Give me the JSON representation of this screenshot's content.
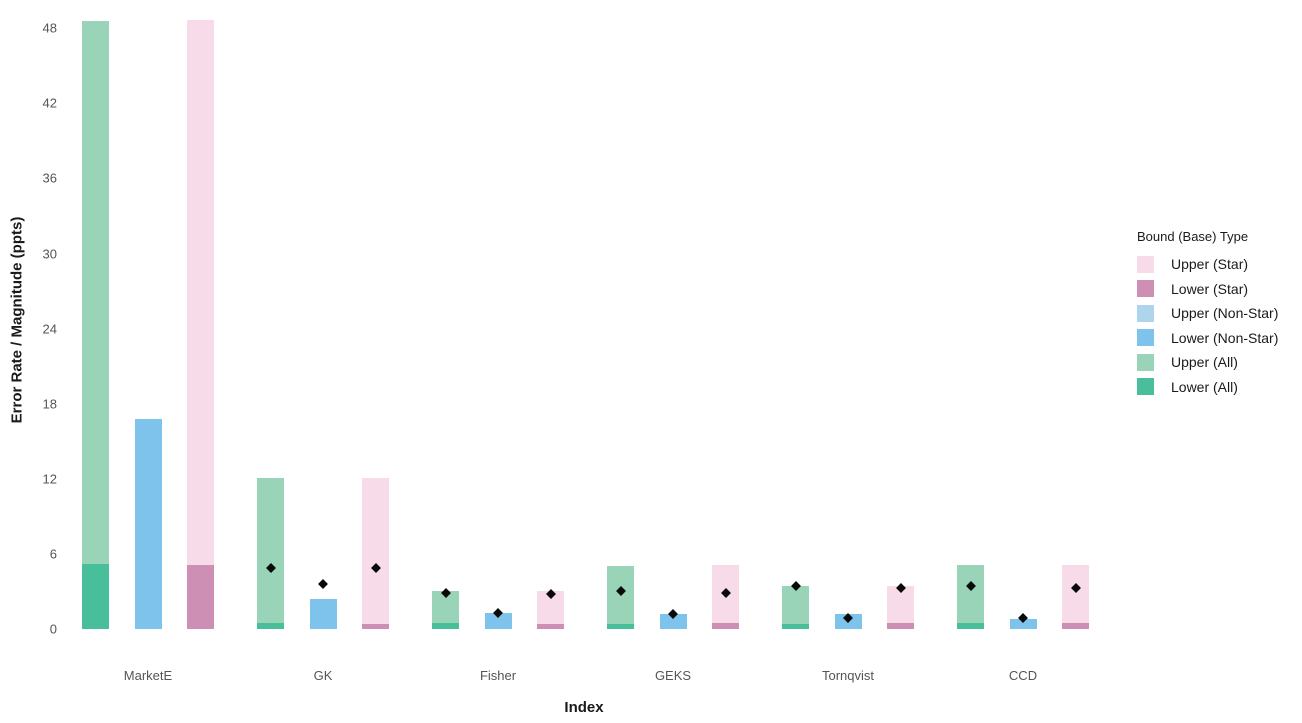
{
  "figure": {
    "y_axis_title": "Error Rate / Magnitude (ppts)",
    "x_axis_title": "Index",
    "legend_title": "Bound (Base) Type"
  },
  "chart_data": {
    "type": "bar",
    "title": "",
    "xlabel": "Index",
    "ylabel": "Error Rate / Magnitude (ppts)",
    "ylim": [
      0,
      49.5
    ],
    "yticks": [
      0,
      6,
      12,
      18,
      24,
      30,
      36,
      42,
      48
    ],
    "grid": false,
    "legend_position": "right",
    "legend_title": "Bound (Base) Type",
    "categories": [
      "MarketE",
      "GK",
      "Fisher",
      "GEKS",
      "Tornqvist",
      "CCD"
    ],
    "bar_groups": [
      "All",
      "Non-Star",
      "Star"
    ],
    "series": [
      {
        "name": "Upper (All)",
        "group": "All",
        "role": "upper",
        "color_key": "upper_all",
        "values": [
          48.6,
          12.1,
          3.0,
          5.0,
          3.4,
          5.1
        ]
      },
      {
        "name": "Lower (All)",
        "group": "All",
        "role": "lower",
        "color_key": "lower_all",
        "values": [
          5.2,
          0.5,
          0.45,
          0.4,
          0.4,
          0.5
        ]
      },
      {
        "name": "Lower (Non-Star)",
        "group": "Non-Star",
        "role": "lower",
        "color_key": "lower_nonstar",
        "values": [
          16.8,
          2.4,
          1.25,
          1.2,
          1.2,
          0.8
        ]
      },
      {
        "name": "Upper (Star)",
        "group": "Star",
        "role": "upper",
        "color_key": "upper_star",
        "values": [
          48.7,
          12.1,
          3.0,
          5.1,
          3.4,
          5.1
        ]
      },
      {
        "name": "Lower (Star)",
        "group": "Star",
        "role": "lower",
        "color_key": "lower_star",
        "values": [
          5.1,
          0.4,
          0.4,
          0.45,
          0.45,
          0.45
        ]
      }
    ],
    "point_markers": {
      "shape": "diamond",
      "color": "#0a0a0a",
      "series": [
        {
          "group": "All",
          "values": [
            null,
            4.9,
            2.9,
            3.0,
            3.4,
            3.4
          ]
        },
        {
          "group": "Non-Star",
          "values": [
            null,
            3.6,
            1.25,
            1.2,
            0.9,
            0.85
          ]
        },
        {
          "group": "Star",
          "values": [
            null,
            4.9,
            2.8,
            2.9,
            3.3,
            3.3
          ]
        }
      ]
    },
    "legend_entries": [
      {
        "label": "Upper (Star)",
        "color_key": "upper_star"
      },
      {
        "label": "Lower (Star)",
        "color_key": "lower_star"
      },
      {
        "label": "Upper (Non-Star)",
        "color_key": "upper_nonstar"
      },
      {
        "label": "Lower (Non-Star)",
        "color_key": "lower_nonstar"
      },
      {
        "label": "Upper (All)",
        "color_key": "upper_all"
      },
      {
        "label": "Lower (All)",
        "color_key": "lower_all"
      }
    ],
    "colors": {
      "upper_star": "#F7DBE9",
      "lower_star": "#CE8FB4",
      "upper_nonstar": "#AFD5EC",
      "lower_nonstar": "#7EC3EB",
      "upper_all": "#99D4B9",
      "lower_all": "#48BE9B",
      "marker": "#0a0a0a",
      "tick_text": "#555555",
      "axis_title_text": "#1a1a1a"
    }
  }
}
